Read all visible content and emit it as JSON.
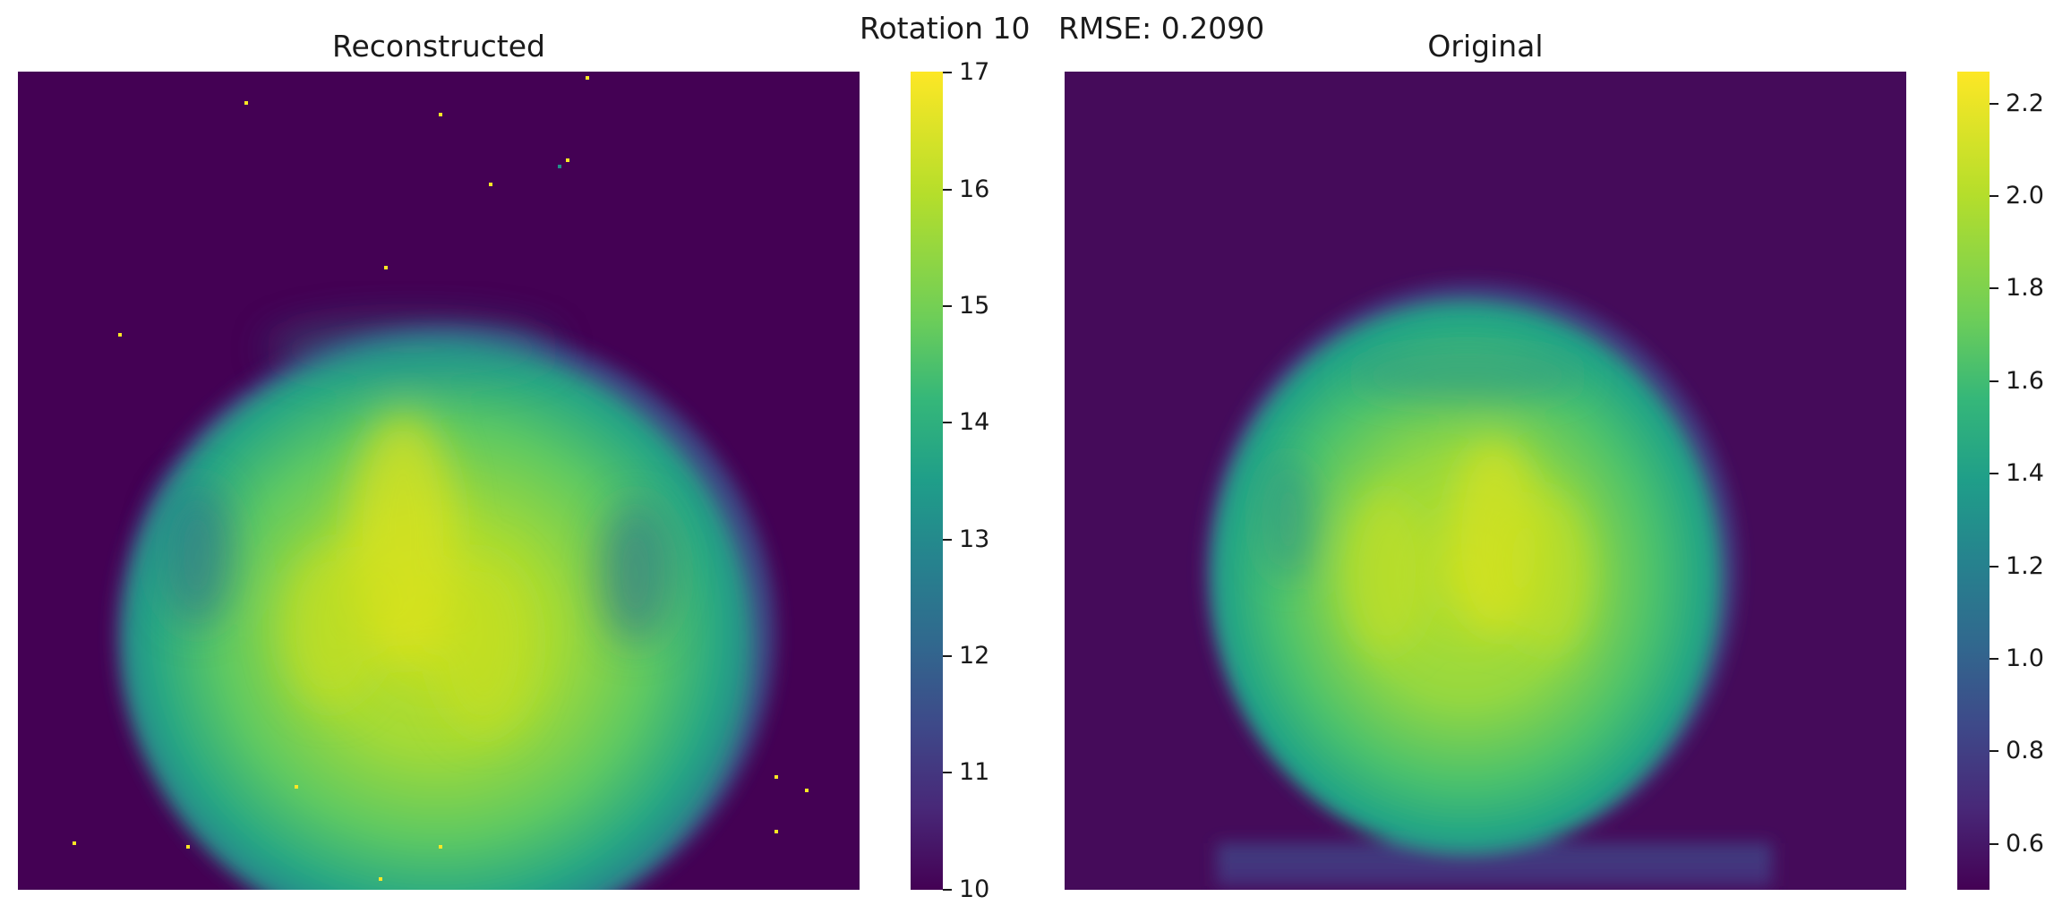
{
  "figure": {
    "suptitle": "Rotation 10   RMSE: 0.2090",
    "left_title": "Reconstructed",
    "right_title": "Original"
  },
  "left_colorbar": {
    "ticks": [
      "10",
      "11",
      "12",
      "13",
      "14",
      "15",
      "16",
      "17"
    ],
    "min": 10,
    "max": 17
  },
  "right_colorbar": {
    "ticks": [
      "0.6",
      "0.8",
      "1.0",
      "1.2",
      "1.4",
      "1.6",
      "1.8",
      "2.0",
      "2.2"
    ],
    "min": 0.5,
    "max": 2.27
  },
  "colors": {
    "background_dark": "#440154",
    "mid": "#21918c",
    "bright": "#fde725"
  }
}
